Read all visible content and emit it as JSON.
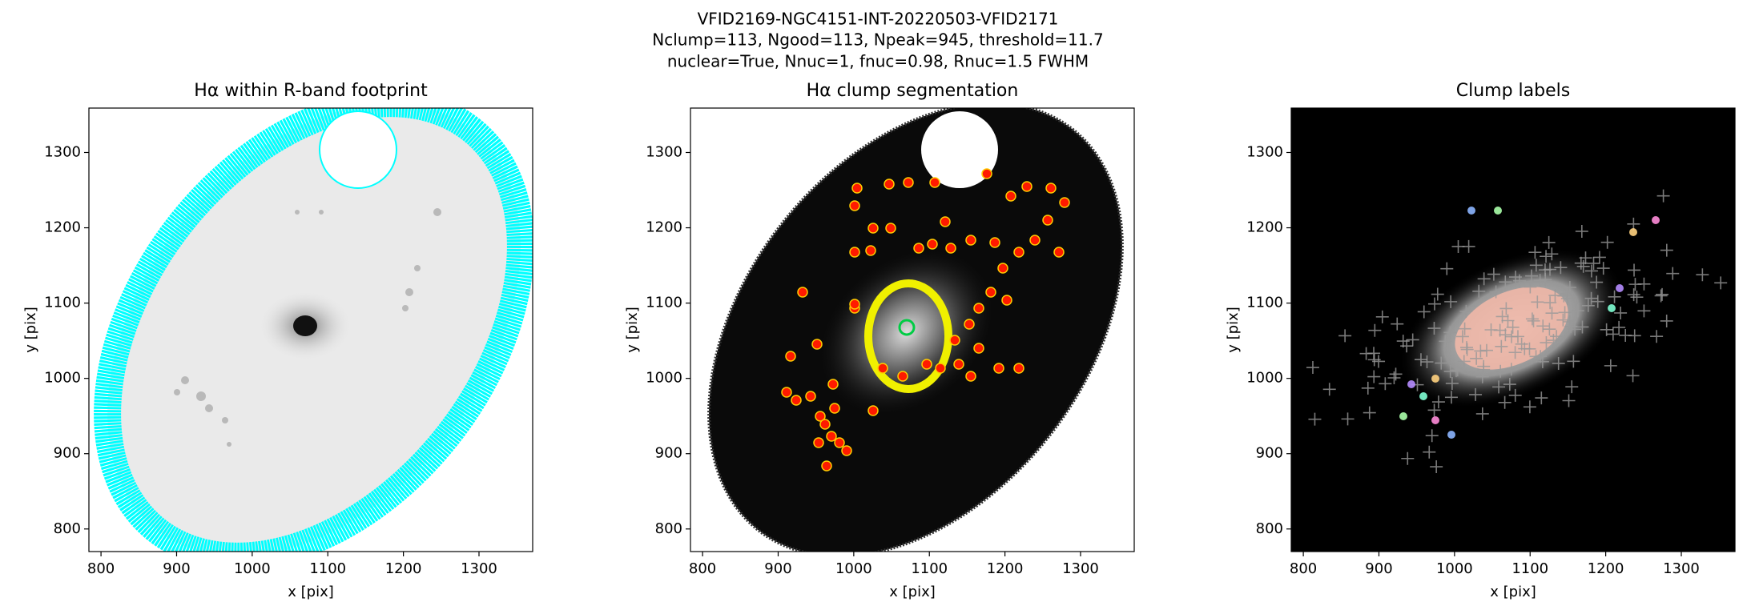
{
  "suptitle": [
    "VFID2169-NGC4151-INT-20220503-VFID2171",
    "Nclump=113, Ngood=113, Npeak=945, threshold=11.7",
    "nuclear=True, Nnuc=1, fnuc=0.98, Rnuc=1.5 FWHM"
  ],
  "chart_data": [
    {
      "type": "image",
      "title": "Hα within R-band footprint",
      "xlabel": "x [pix]",
      "ylabel": "y [pix]",
      "xlim": [
        784,
        1371
      ],
      "ylim": [
        770,
        1359
      ],
      "xticks": [
        800,
        900,
        1000,
        1100,
        1200,
        1300
      ],
      "yticks": [
        800,
        900,
        1000,
        1100,
        1200,
        1300
      ]
    },
    {
      "type": "image",
      "title": "Hα clump segmentation",
      "xlabel": "x [pix]",
      "ylabel": "y [pix]",
      "xlim": [
        784,
        1371
      ],
      "ylim": [
        770,
        1359
      ],
      "xticks": [
        800,
        900,
        1000,
        1100,
        1200,
        1300
      ],
      "yticks": [
        800,
        900,
        1000,
        1100,
        1200,
        1300
      ]
    },
    {
      "type": "image",
      "title": "Clump labels",
      "xlabel": "x [pix]",
      "ylabel": "y [pix]",
      "xlim": [
        784,
        1371
      ],
      "ylim": [
        770,
        1359
      ],
      "xticks": [
        800,
        900,
        1000,
        1100,
        1200,
        1300
      ],
      "yticks": [
        800,
        900,
        1000,
        1100,
        1200,
        1300
      ]
    }
  ]
}
